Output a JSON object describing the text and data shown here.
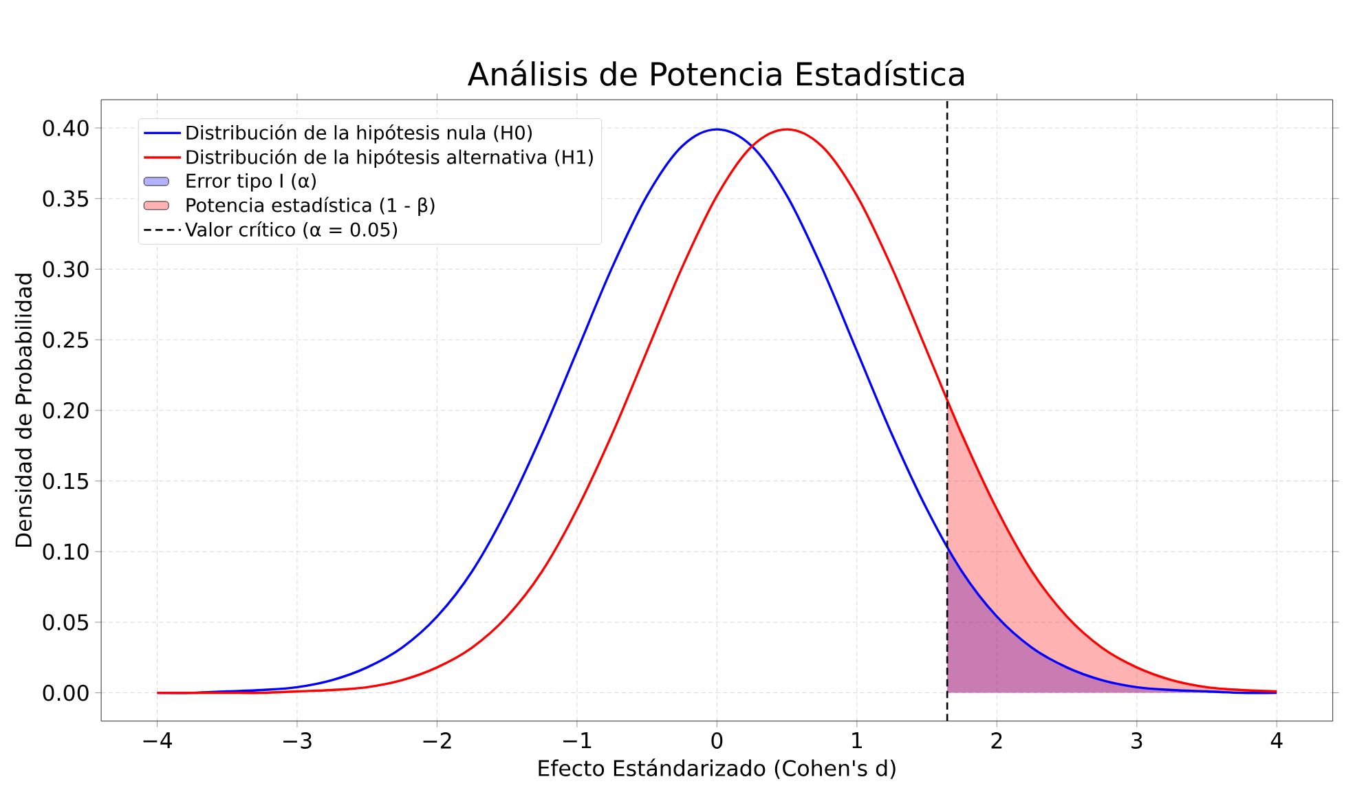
{
  "chart_data": {
    "type": "line",
    "title": "Análisis de Potencia Estadística",
    "xlabel": "Efecto Estándarizado (Cohen's d)",
    "ylabel": "Densidad de Probabilidad",
    "x": [
      -4,
      -3.75,
      -3.5,
      -3.25,
      -3,
      -2.75,
      -2.5,
      -2.25,
      -2,
      -1.75,
      -1.5,
      -1.25,
      -1,
      -0.75,
      -0.5,
      -0.25,
      0,
      0.25,
      0.5,
      0.75,
      1,
      1.25,
      1.5,
      1.75,
      2,
      2.25,
      2.5,
      2.75,
      3,
      3.25,
      3.5,
      3.75,
      4
    ],
    "series": [
      {
        "name": "Distribución de la hipótesis nula (H0)",
        "color": "#0000ff",
        "values": [
          0.0,
          0.0,
          0.001,
          0.002,
          0.004,
          0.009,
          0.018,
          0.032,
          0.054,
          0.086,
          0.13,
          0.183,
          0.242,
          0.301,
          0.352,
          0.387,
          0.399,
          0.387,
          0.352,
          0.301,
          0.242,
          0.183,
          0.13,
          0.086,
          0.054,
          0.032,
          0.018,
          0.009,
          0.004,
          0.002,
          0.001,
          0.0,
          0.0
        ]
      },
      {
        "name": "Distribución de la hipótesis alternativa (H1)",
        "color": "#ff0000",
        "values": [
          0.0,
          0.0,
          0.0,
          0.0,
          0.001,
          0.002,
          0.004,
          0.009,
          0.018,
          0.032,
          0.054,
          0.086,
          0.13,
          0.183,
          0.242,
          0.301,
          0.352,
          0.387,
          0.399,
          0.387,
          0.352,
          0.301,
          0.242,
          0.183,
          0.13,
          0.086,
          0.054,
          0.032,
          0.018,
          0.009,
          0.004,
          0.002,
          0.001
        ]
      },
      {
        "name": "Error tipo I (α)",
        "type": "area",
        "color": "#0000ff",
        "x": [
          1.645,
          1.75,
          2,
          2.25,
          2.5,
          2.75,
          3,
          3.25,
          3.5,
          3.75,
          4
        ],
        "values": [
          0.103,
          0.086,
          0.054,
          0.032,
          0.018,
          0.009,
          0.004,
          0.002,
          0.001,
          0.0,
          0.0
        ]
      },
      {
        "name": "Potencia estadística (1 - β)",
        "type": "area",
        "color": "#ff0000",
        "x": [
          1.645,
          1.75,
          2,
          2.25,
          2.5,
          2.75,
          3,
          3.25,
          3.5,
          3.75,
          4
        ],
        "values": [
          0.207,
          0.183,
          0.13,
          0.086,
          0.054,
          0.032,
          0.018,
          0.009,
          0.004,
          0.002,
          0.001
        ]
      },
      {
        "name": "Valor crítico (α = 0.05)",
        "type": "line",
        "color": "#000000",
        "line_style": "dashed",
        "x": [
          1.645,
          1.645
        ],
        "values": [
          -0.02,
          0.42
        ]
      }
    ],
    "xlim": [
      -4.4,
      4.4
    ],
    "ylim": [
      -0.02,
      0.42
    ],
    "xticks": [
      {
        "value": -4,
        "label": "−4"
      },
      {
        "value": -3,
        "label": "−3"
      },
      {
        "value": -2,
        "label": "−2"
      },
      {
        "value": -1,
        "label": "−1"
      },
      0,
      1,
      2,
      3,
      4
    ],
    "yticks": [
      {
        "value": 0,
        "label": "0.00"
      },
      {
        "value": 0.05,
        "label": "0.05"
      },
      {
        "value": 0.1,
        "label": "0.10"
      },
      {
        "value": 0.15,
        "label": "0.15"
      },
      {
        "value": 0.2,
        "label": "0.20"
      },
      {
        "value": 0.25,
        "label": "0.25"
      },
      {
        "value": 0.3,
        "label": "0.30"
      },
      {
        "value": 0.35,
        "label": "0.35"
      },
      {
        "value": 0.4,
        "label": "0.40"
      }
    ],
    "grid": true,
    "legend": "top left",
    "line_style": "solid"
  }
}
